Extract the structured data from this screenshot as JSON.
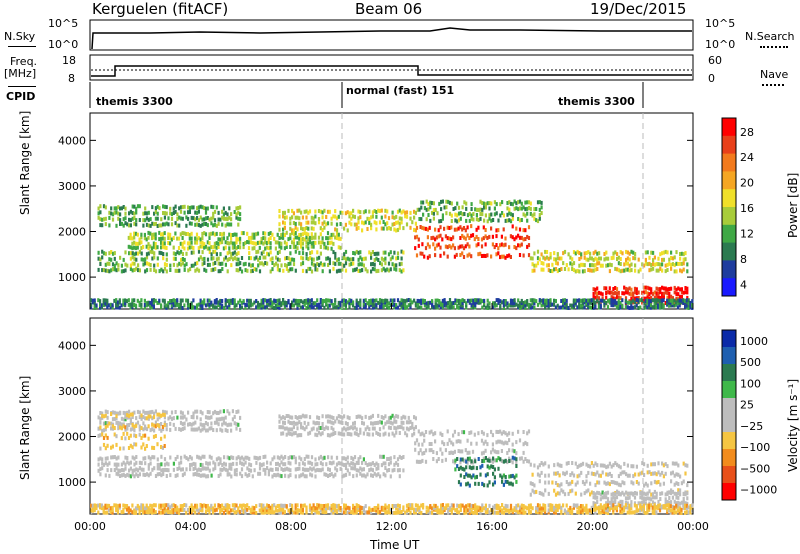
{
  "header": {
    "station": "Kerguelen (fitACF)",
    "beam": "Beam 06",
    "date": "19/Dec/2015"
  },
  "panels": {
    "nsky": {
      "label": "N.Sky",
      "ticks": [
        "10^5",
        "10^0"
      ],
      "right_label": "N.Search"
    },
    "freq": {
      "label_line1": "Freq.",
      "label_line2": "[MHz]",
      "ticks_left": [
        "18",
        "8"
      ],
      "ticks_right": [
        "60",
        "0"
      ],
      "right_label": "Nave"
    },
    "cpid": {
      "label": "CPID",
      "segments": [
        "themis 3300",
        "normal (fast) 151",
        "themis 3300"
      ]
    }
  },
  "colors": {
    "power_scale": [
      "#1a1aff",
      "#1e3c9e",
      "#2b7a50",
      "#3fa845",
      "#a8cc3a",
      "#f0e02a",
      "#f5a623",
      "#f27a1d",
      "#e8401a",
      "#ff0000"
    ],
    "velocity_scale": [
      "#0a2aa8",
      "#1e5fb0",
      "#2b7a50",
      "#3fb84a",
      "#bdbdbd",
      "#bdbdbd",
      "#f5c542",
      "#f28c1d",
      "#e8501a",
      "#ff0000"
    ]
  },
  "chart_data": [
    {
      "type": "heatmap",
      "title": "",
      "xlabel": "Time UT",
      "ylabel": "Slant Range [km]",
      "x_ticks": [
        "00:00",
        "04:00",
        "08:00",
        "12:00",
        "16:00",
        "20:00",
        "00:00"
      ],
      "y_ticks": [
        "1000",
        "2000",
        "3000",
        "4000"
      ],
      "ylim": [
        300,
        4600
      ],
      "colorbar": {
        "label": "Power [dB]",
        "ticks": [
          "4",
          "8",
          "12",
          "16",
          "20",
          "24",
          "28"
        ],
        "range": [
          0,
          30
        ]
      },
      "bands": [
        {
          "t0": 0.3,
          "t1": 12.5,
          "r0": 1100,
          "r1": 1600,
          "level": 10
        },
        {
          "t0": 0.3,
          "t1": 6.0,
          "r0": 2100,
          "r1": 2600,
          "level": 9
        },
        {
          "t0": 1.5,
          "t1": 10.0,
          "r0": 1600,
          "r1": 2000,
          "level": 12
        },
        {
          "t0": 7.5,
          "t1": 13.0,
          "r0": 2000,
          "r1": 2500,
          "level": 14
        },
        {
          "t0": 12.9,
          "t1": 17.5,
          "r0": 1400,
          "r1": 2200,
          "level": 24
        },
        {
          "t0": 13.0,
          "t1": 18.0,
          "r0": 2200,
          "r1": 2700,
          "level": 10
        },
        {
          "t0": 17.5,
          "t1": 23.8,
          "r0": 1100,
          "r1": 1600,
          "level": 14
        },
        {
          "t0": 20.0,
          "t1": 23.8,
          "r0": 400,
          "r1": 800,
          "level": 26
        },
        {
          "t0": 0.0,
          "t1": 24.0,
          "r0": 300,
          "r1": 500,
          "level": 6
        }
      ]
    },
    {
      "type": "heatmap",
      "title": "",
      "xlabel": "Time UT",
      "ylabel": "Slant Range [km]",
      "x_ticks": [
        "00:00",
        "04:00",
        "08:00",
        "12:00",
        "16:00",
        "20:00",
        "00:00"
      ],
      "y_ticks": [
        "1000",
        "2000",
        "3000",
        "4000"
      ],
      "ylim": [
        300,
        4600
      ],
      "colorbar": {
        "label": "Velocity [m s⁻¹]",
        "ticks": [
          "1000",
          "500",
          "100",
          "25",
          "−25",
          "−100",
          "−500",
          "−1000"
        ]
      },
      "bands": [
        {
          "t0": 0.3,
          "t1": 12.5,
          "r0": 1100,
          "r1": 1600,
          "level": 0
        },
        {
          "t0": 0.3,
          "t1": 6.0,
          "r0": 2100,
          "r1": 2600,
          "level": 0
        },
        {
          "t0": 0.3,
          "t1": 3.0,
          "r0": 1700,
          "r1": 2600,
          "level": 2
        },
        {
          "t0": 7.5,
          "t1": 13.0,
          "r0": 2000,
          "r1": 2500,
          "level": 0
        },
        {
          "t0": 12.9,
          "t1": 17.5,
          "r0": 1400,
          "r1": 2200,
          "level": 0
        },
        {
          "t0": 14.5,
          "t1": 17.0,
          "r0": 900,
          "r1": 1600,
          "level": -2
        },
        {
          "t0": 17.5,
          "t1": 23.8,
          "r0": 700,
          "r1": 1500,
          "level": 1
        },
        {
          "t0": 20.0,
          "t1": 23.8,
          "r0": 400,
          "r1": 800,
          "level": 0
        },
        {
          "t0": 0.0,
          "t1": 24.0,
          "r0": 300,
          "r1": 500,
          "level": 2
        }
      ]
    }
  ]
}
